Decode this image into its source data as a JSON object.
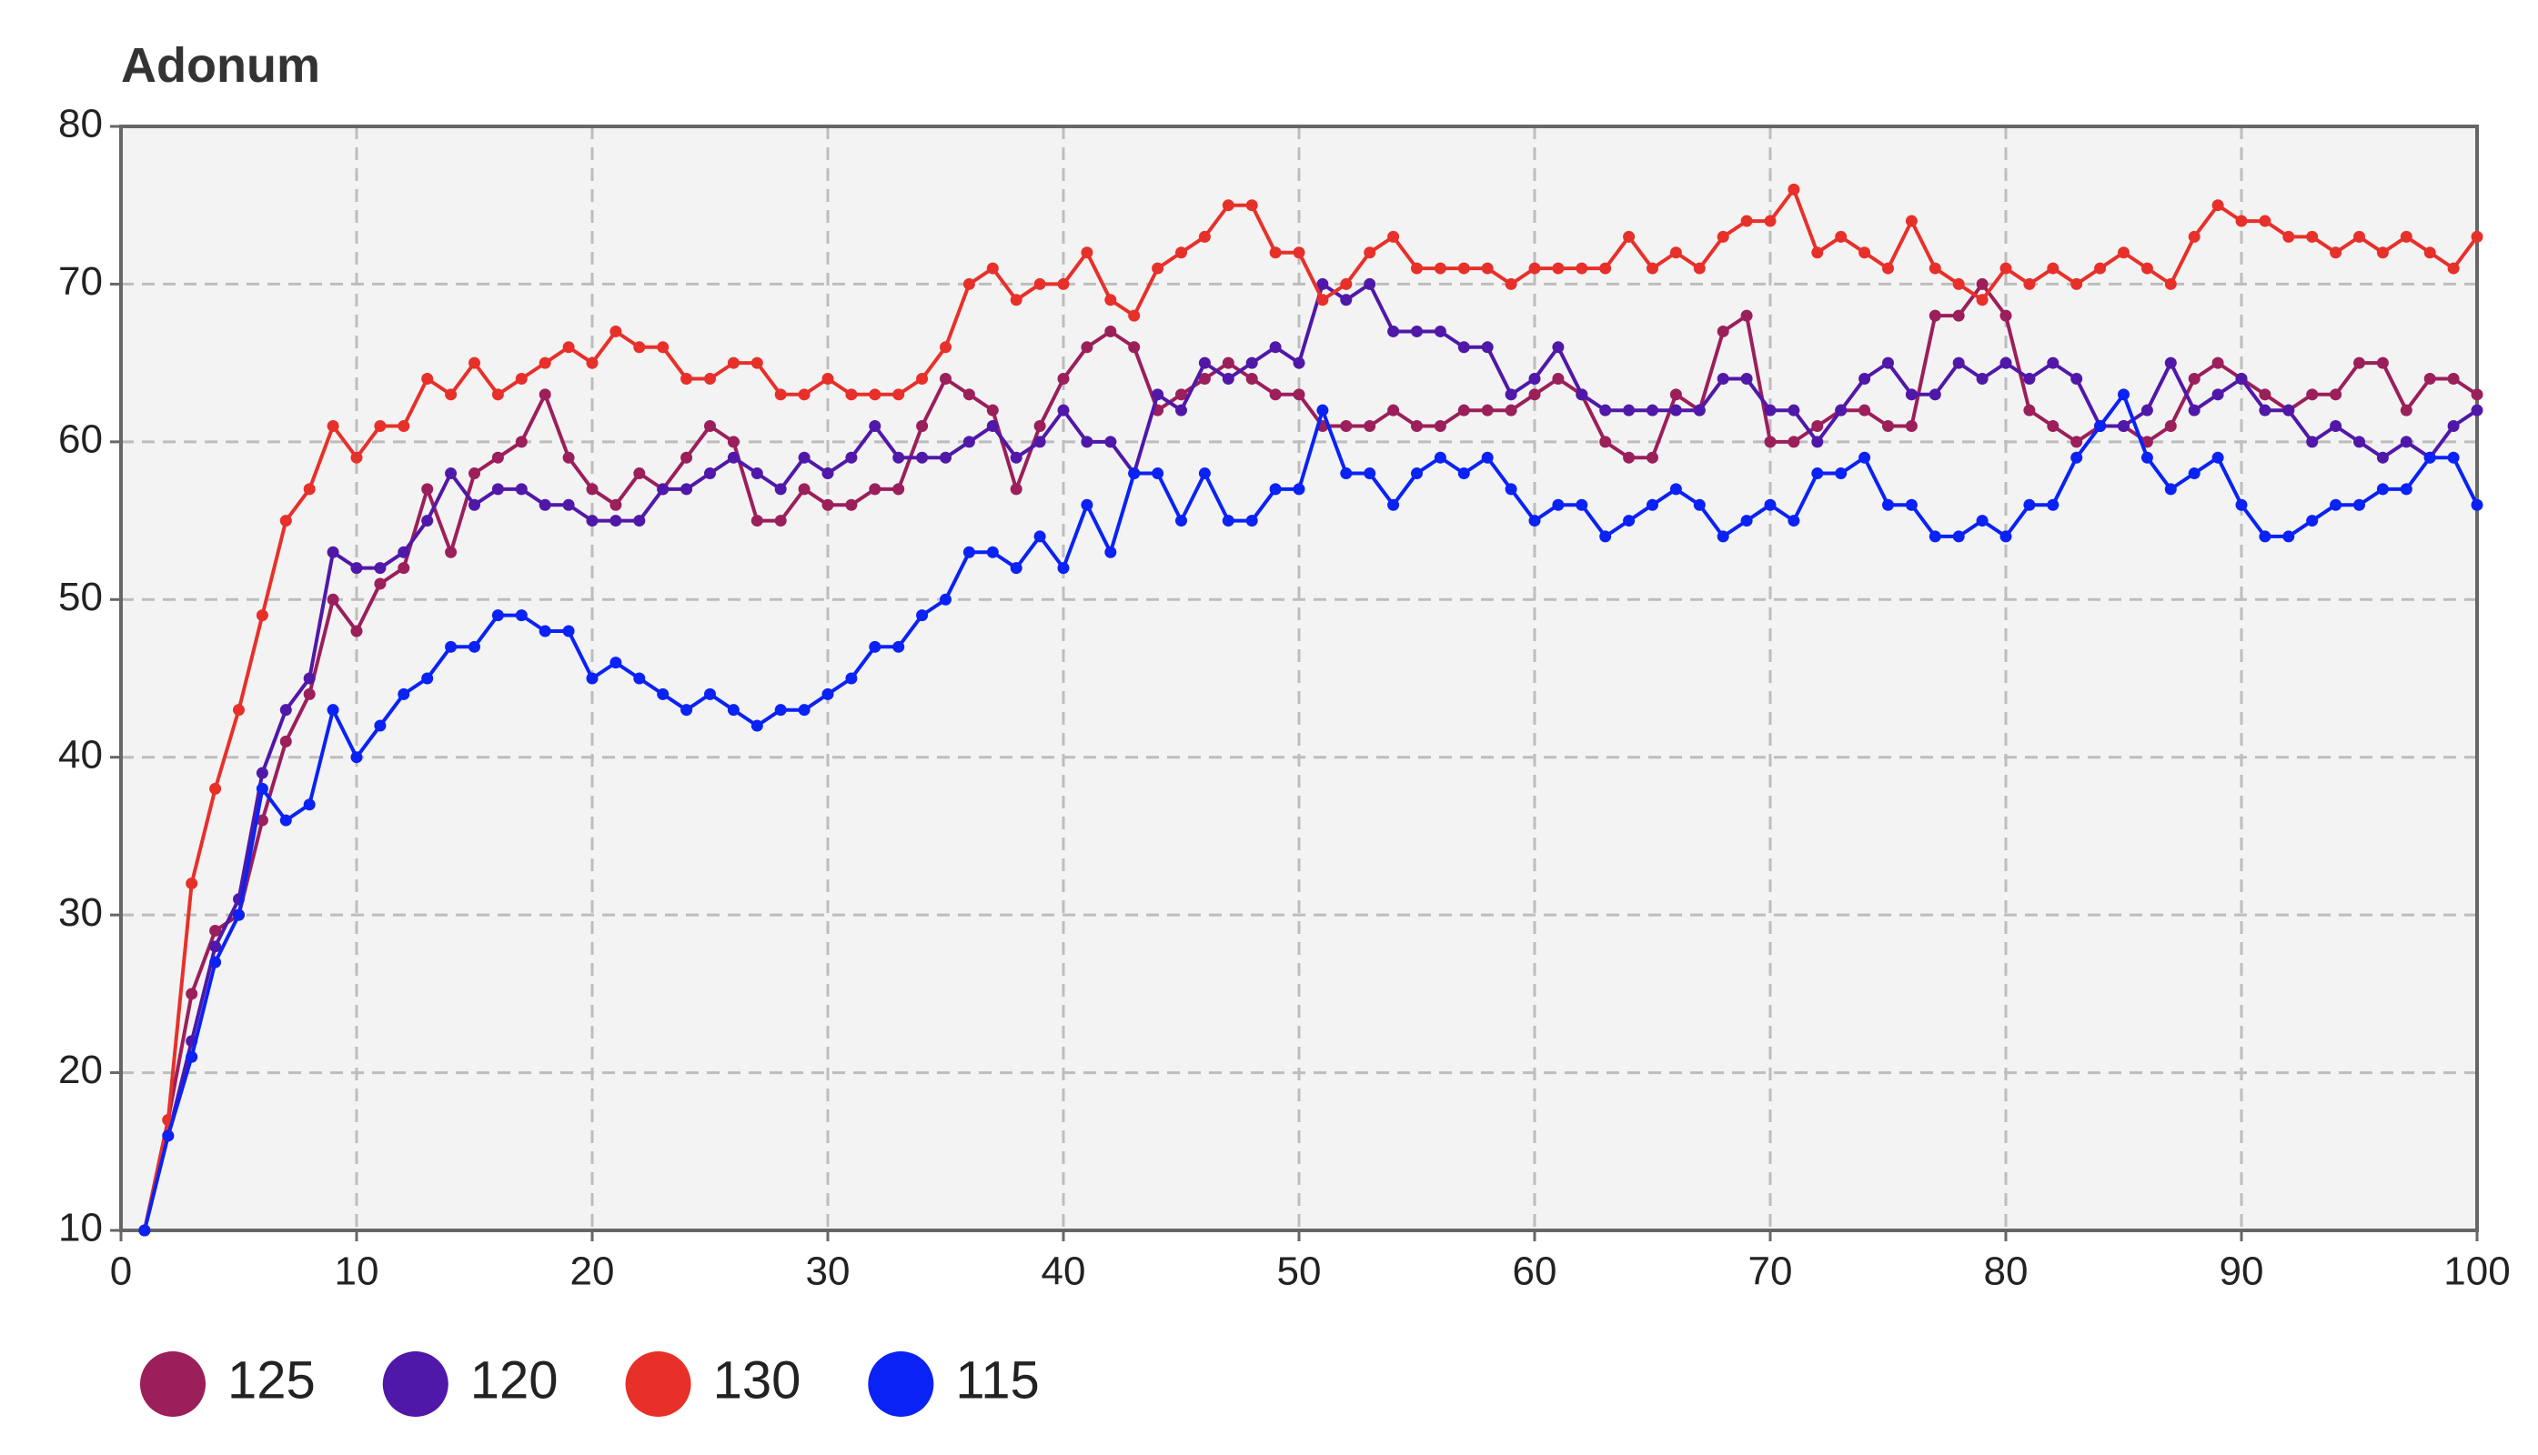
{
  "chart_data": {
    "type": "line",
    "title": "Adonum",
    "x": [
      1,
      2,
      3,
      4,
      5,
      6,
      7,
      8,
      9,
      10,
      11,
      12,
      13,
      14,
      15,
      16,
      17,
      18,
      19,
      20,
      21,
      22,
      23,
      24,
      25,
      26,
      27,
      28,
      29,
      30,
      31,
      32,
      33,
      34,
      35,
      36,
      37,
      38,
      39,
      40,
      41,
      42,
      43,
      44,
      45,
      46,
      47,
      48,
      49,
      50,
      51,
      52,
      53,
      54,
      55,
      56,
      57,
      58,
      59,
      60,
      61,
      62,
      63,
      64,
      65,
      66,
      67,
      68,
      69,
      70,
      71,
      72,
      73,
      74,
      75,
      76,
      77,
      78,
      79,
      80,
      81,
      82,
      83,
      84,
      85,
      86,
      87,
      88,
      89,
      90,
      91,
      92,
      93,
      94,
      95,
      96,
      97,
      98,
      99,
      100
    ],
    "series": [
      {
        "name": "125",
        "color": "#9b1f5a",
        "values": [
          10,
          17,
          25,
          29,
          30,
          36,
          41,
          44,
          50,
          48,
          51,
          52,
          57,
          53,
          58,
          59,
          60,
          63,
          59,
          57,
          56,
          58,
          57,
          59,
          61,
          60,
          55,
          55,
          57,
          56,
          56,
          57,
          57,
          61,
          64,
          63,
          62,
          57,
          61,
          64,
          66,
          67,
          66,
          62,
          63,
          64,
          65,
          64,
          63,
          63,
          61,
          61,
          61,
          62,
          61,
          61,
          62,
          62,
          62,
          63,
          64,
          63,
          60,
          59,
          59,
          63,
          62,
          67,
          68,
          60,
          60,
          61,
          62,
          62,
          61,
          61,
          68,
          68,
          70,
          68,
          62,
          61,
          60,
          61,
          61,
          60,
          61,
          64,
          65,
          64,
          63,
          62,
          63,
          63,
          65,
          65,
          62,
          64,
          64,
          63
        ]
      },
      {
        "name": "120",
        "color": "#5018a8",
        "values": [
          10,
          16,
          22,
          28,
          31,
          39,
          43,
          45,
          53,
          52,
          52,
          53,
          55,
          58,
          56,
          57,
          57,
          56,
          56,
          55,
          55,
          55,
          57,
          57,
          58,
          59,
          58,
          57,
          59,
          58,
          59,
          61,
          59,
          59,
          59,
          60,
          61,
          59,
          60,
          62,
          60,
          60,
          58,
          63,
          62,
          65,
          64,
          65,
          66,
          65,
          70,
          69,
          70,
          67,
          67,
          67,
          66,
          66,
          63,
          64,
          66,
          63,
          62,
          62,
          62,
          62,
          62,
          64,
          64,
          62,
          62,
          60,
          62,
          64,
          65,
          63,
          63,
          65,
          64,
          65,
          64,
          65,
          64,
          61,
          61,
          62,
          65,
          62,
          63,
          64,
          62,
          62,
          60,
          61,
          60,
          59,
          60,
          59,
          61,
          62
        ]
      },
      {
        "name": "130",
        "color": "#e8302a",
        "values": [
          10,
          17,
          32,
          38,
          43,
          49,
          55,
          57,
          61,
          59,
          61,
          61,
          64,
          63,
          65,
          63,
          64,
          65,
          66,
          65,
          67,
          66,
          66,
          64,
          64,
          65,
          65,
          63,
          63,
          64,
          63,
          63,
          63,
          64,
          66,
          70,
          71,
          69,
          70,
          70,
          72,
          69,
          68,
          71,
          72,
          73,
          75,
          75,
          72,
          72,
          69,
          70,
          72,
          73,
          71,
          71,
          71,
          71,
          70,
          71,
          71,
          71,
          71,
          73,
          71,
          72,
          71,
          73,
          74,
          74,
          76,
          72,
          73,
          72,
          71,
          74,
          71,
          70,
          69,
          71,
          70,
          71,
          70,
          71,
          72,
          71,
          70,
          73,
          75,
          74,
          74,
          73,
          73,
          72,
          73,
          72,
          73,
          72,
          71,
          73
        ]
      },
      {
        "name": "115",
        "color": "#0a22f5",
        "values": [
          10,
          16,
          21,
          27,
          30,
          38,
          36,
          37,
          43,
          40,
          42,
          44,
          45,
          47,
          47,
          49,
          49,
          48,
          48,
          45,
          46,
          45,
          44,
          43,
          44,
          43,
          42,
          43,
          43,
          44,
          45,
          47,
          47,
          49,
          50,
          53,
          53,
          52,
          54,
          52,
          56,
          53,
          58,
          58,
          55,
          58,
          55,
          55,
          57,
          57,
          62,
          58,
          58,
          56,
          58,
          59,
          58,
          59,
          57,
          55,
          56,
          56,
          54,
          55,
          56,
          57,
          56,
          54,
          55,
          56,
          55,
          58,
          58,
          59,
          56,
          56,
          54,
          54,
          55,
          54,
          56,
          56,
          59,
          61,
          63,
          59,
          57,
          58,
          59,
          56,
          54,
          54,
          55,
          56,
          56,
          57,
          57,
          59,
          59,
          56
        ]
      }
    ],
    "xlim": [
      0,
      100
    ],
    "xticks": [
      0,
      10,
      20,
      30,
      40,
      50,
      60,
      70,
      80,
      90,
      100
    ],
    "ylim": [
      10,
      80
    ],
    "yticks": [
      10,
      20,
      30,
      40,
      50,
      60,
      70,
      80
    ],
    "grid": true
  }
}
